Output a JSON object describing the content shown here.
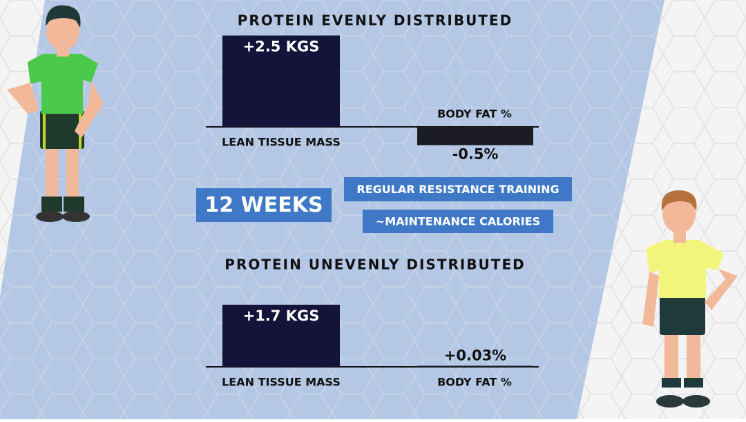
{
  "chart_data": [
    {
      "type": "bar",
      "title": "PROTEIN EVENLY DISTRIBUTED",
      "categories": [
        "LEAN TISSUE MASS",
        "BODY FAT %"
      ],
      "values": [
        2.5,
        -0.5
      ],
      "value_labels": [
        "+2.5 KGS",
        "-0.5%"
      ],
      "colors": [
        "#14133a",
        "#1b1c24"
      ]
    },
    {
      "type": "bar",
      "title": "PROTEIN UNEVENLY DISTRIBUTED",
      "categories": [
        "LEAN TISSUE MASS",
        "BODY FAT %"
      ],
      "values": [
        1.7,
        0.03
      ],
      "value_labels": [
        "+1.7 KGS",
        "+0.03%"
      ],
      "colors": [
        "#14133a",
        "#16222a"
      ]
    }
  ],
  "badges": [
    "12 WEEKS",
    "REGULAR RESISTANCE TRAINING",
    "~MAINTENANCE CALORIES"
  ]
}
